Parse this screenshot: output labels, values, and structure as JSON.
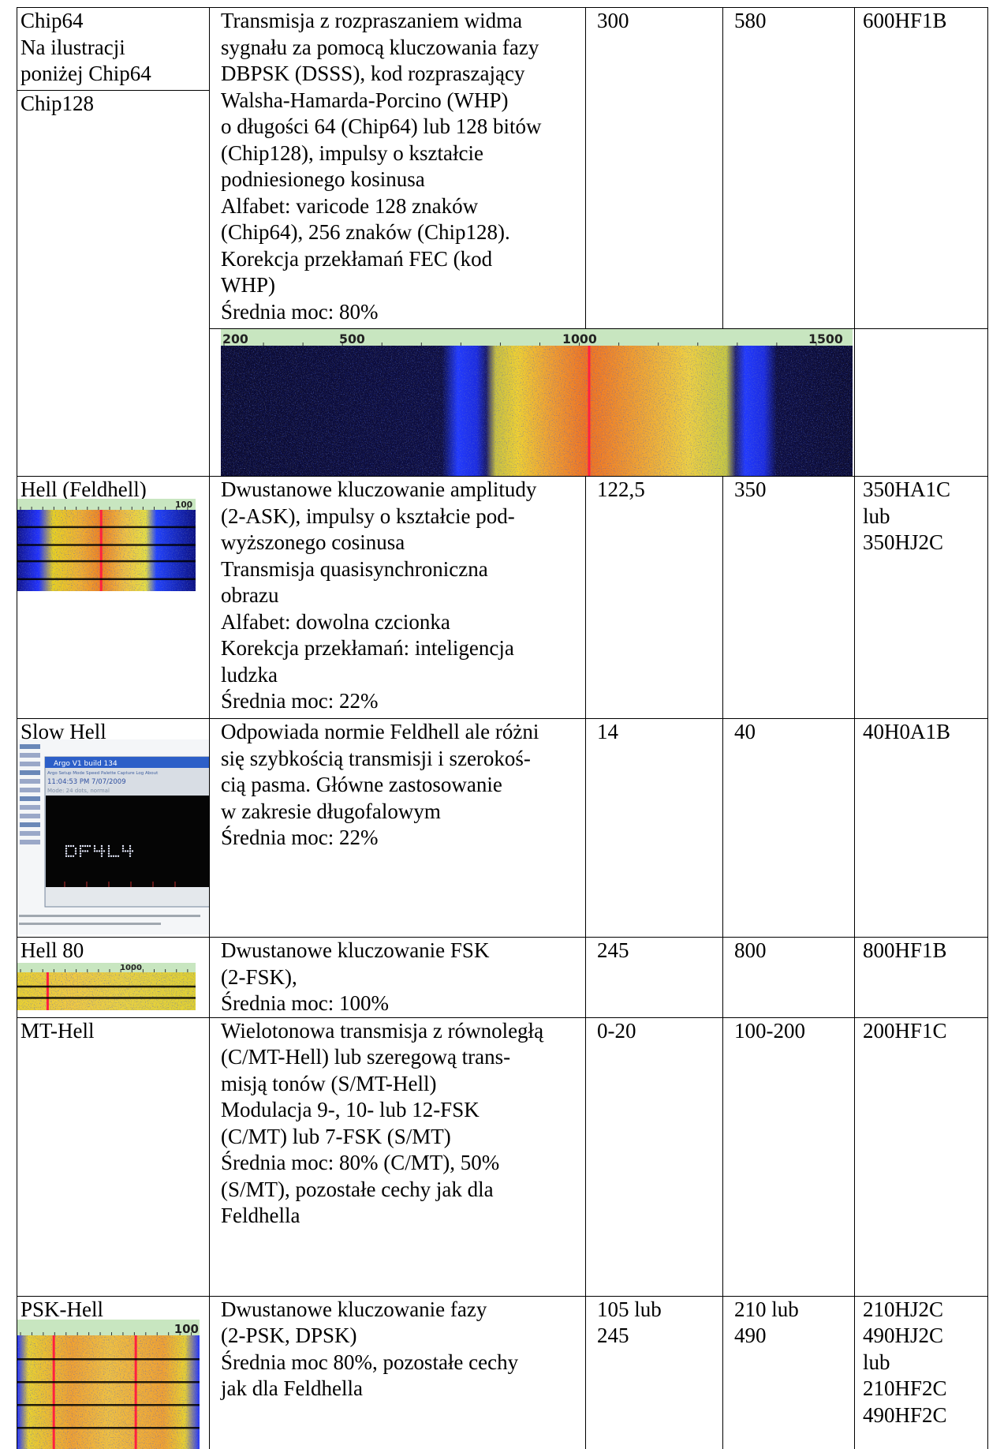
{
  "table": {
    "rows": [
      {
        "mode": [
          "Chip64",
          "Na ilustracji",
          "poniżej Chip64"
        ],
        "mode_alt": [
          "Chip128"
        ],
        "description": [
          "Transmisja z rozpraszaniem widma",
          "sygnału za pomocą kluczowania fazy",
          "DBPSK (DSSS), kod rozpraszający",
          "Walsha-Hamarda-Porcino (WHP)",
          "o długości 64 (Chip64) lub 128 bitów",
          "(Chip128), impulsy o kształcie",
          "podniesionego kosinusa",
          "Alfabet: varicode 128 znaków",
          "(Chip64), 256 znaków (Chip128).",
          "Korekcja przekłamań FEC (kod",
          "WHP)",
          "Średnia moc: 80%"
        ],
        "baud": [
          "300"
        ],
        "bandwidth": [
          "580"
        ],
        "designation": [
          "600HF1B"
        ]
      },
      {
        "mode": [
          "Hell (Feldhell)"
        ],
        "description": [
          "Dwustanowe kluczowanie amplitudy",
          "(2-ASK), impulsy o kształcie pod-",
          "wyższonego cosinusa",
          "Transmisja quasisynchroniczna",
          "obrazu",
          "Alfabet: dowolna czcionka",
          "Korekcja przekłamań: inteligencja",
          "ludzka",
          "Średnia moc: 22%"
        ],
        "baud": [
          "122,5"
        ],
        "bandwidth": [
          "350"
        ],
        "designation": [
          "350HA1C",
          "lub",
          "350HJ2C"
        ]
      },
      {
        "mode": [
          "Slow Hell"
        ],
        "description": [
          "Odpowiada normie Feldhell ale różni",
          "się szybkością transmisji i szerokoś-",
          "cią pasma. Główne zastosowanie",
          "w zakresie długofalowym",
          "Średnia moc: 22%"
        ],
        "baud": [
          "14"
        ],
        "bandwidth": [
          "40"
        ],
        "designation": [
          "40H0A1B"
        ]
      },
      {
        "mode": [
          "Hell 80"
        ],
        "description": [
          "Dwustanowe kluczowanie FSK",
          "(2-FSK),",
          "Średnia moc: 100%"
        ],
        "baud": [
          "245"
        ],
        "bandwidth": [
          "800"
        ],
        "designation": [
          "800HF1B"
        ]
      },
      {
        "mode": [
          "MT-Hell"
        ],
        "description": [
          "Wielotonowa transmisja z równoległą",
          "(C/MT-Hell) lub szeregową trans-",
          "misją tonów (S/MT-Hell)",
          "Modulacja 9-, 10- lub 12-FSK",
          "(C/MT) lub 7-FSK (S/MT)",
          "Średnia moc: 80% (C/MT), 50%",
          "(S/MT), pozostałe cechy jak dla",
          "Feldhella"
        ],
        "baud": [
          "0-20"
        ],
        "bandwidth": [
          "100-200"
        ],
        "designation": [
          "200HF1C"
        ]
      },
      {
        "mode": [
          "PSK-Hell"
        ],
        "description": [
          "Dwustanowe kluczowanie fazy",
          "(2-PSK, DPSK)",
          "Średnia moc 80%, pozostałe cechy",
          "jak dla Feldhella"
        ],
        "baud": [
          "105 lub",
          "245"
        ],
        "bandwidth": [
          "210 lub",
          "490"
        ],
        "designation": [
          "210HJ2C",
          "490HJ2C",
          "lub",
          "210HF2C",
          "490HF2C"
        ]
      }
    ]
  },
  "figures": {
    "chip64_waterfall": {
      "scale_labels": [
        "200",
        "500",
        "1000",
        "1500"
      ]
    },
    "feldhell_waterfall": {
      "scale_label": "100"
    },
    "slow_hell_screenshot": {
      "title": "Argo V1 build 134",
      "menu": "Argo  Setup  Mode  Speed  Palette  Capture  Log  About",
      "time": "11:04:53 PM  7/07/2009",
      "mode": "Mode: 24 dots, normal"
    },
    "hell80_waterfall": {
      "scale_label": "1000"
    },
    "psk_hell_waterfall": {
      "scale_label": "100"
    }
  }
}
